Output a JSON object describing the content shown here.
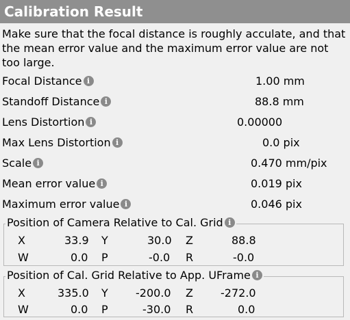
{
  "title": "Calibration Result",
  "intro": "Make sure that the focal distance is roughly acculate, and that the mean error value and the maximum error value are not too large.",
  "info_icon": "info-icon",
  "rows": [
    {
      "label": "Focal Distance",
      "value": "1.00 mm"
    },
    {
      "label": "Standoff Distance",
      "value": "88.8 mm"
    },
    {
      "label": "Lens Distortion",
      "value": "0.00000"
    },
    {
      "label": "Max Lens Distortion",
      "value": "0.0 pix"
    },
    {
      "label": "Scale",
      "value": "0.470 mm/pix"
    },
    {
      "label": "Mean error value",
      "value": "0.019 pix"
    },
    {
      "label": "Maximum error value",
      "value": "0.046 pix"
    }
  ],
  "camera_group": {
    "title": "Position of Camera Relative to Cal. Grid",
    "x_label": "X",
    "x": "33.9",
    "y_label": "Y",
    "y": "30.0",
    "z_label": "Z",
    "z": "88.8",
    "w_label": "W",
    "w": "0.0",
    "p_label": "P",
    "p": "-0.0",
    "r_label": "R",
    "r": "-0.0"
  },
  "grid_group": {
    "title": "Position of Cal. Grid Relative to App. UFrame",
    "x_label": "X",
    "x": "335.0",
    "y_label": "Y",
    "y": "-200.0",
    "z_label": "Z",
    "z": "-272.0",
    "w_label": "W",
    "w": "0.0",
    "p_label": "P",
    "p": "-30.0",
    "r_label": "R",
    "r": "0.0"
  }
}
